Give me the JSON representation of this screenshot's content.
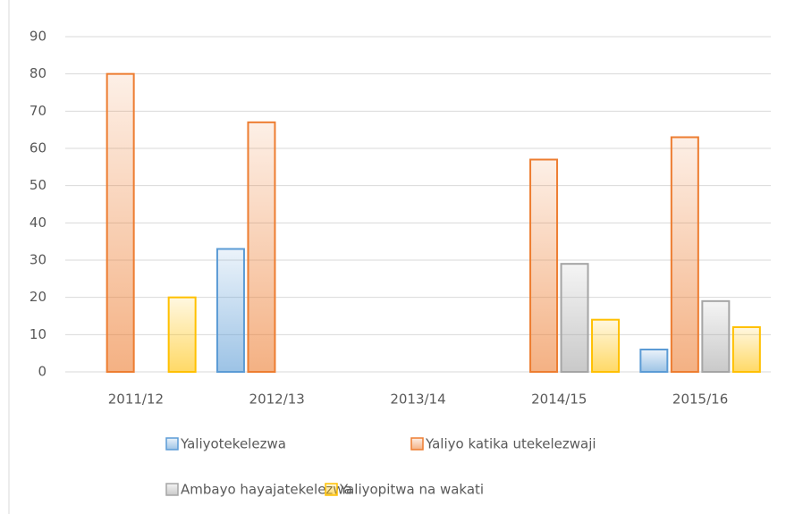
{
  "chart_data": {
    "type": "bar",
    "categories": [
      "2011/12",
      "2012/13",
      "2013/14",
      "2014/15",
      "2015/16"
    ],
    "series": [
      {
        "name": "Yaliyotekelezwa",
        "color": "#5b9bd5",
        "values": [
          null,
          33,
          null,
          null,
          6
        ]
      },
      {
        "name": "Yaliyo katika utekelezwaji",
        "color": "#ed7d31",
        "values": [
          80,
          67,
          null,
          57,
          63
        ]
      },
      {
        "name": "Ambayo hayajatekelezwa",
        "color": "#a5a5a5",
        "values": [
          null,
          null,
          null,
          29,
          19
        ]
      },
      {
        "name": "Yaliyopitwa na wakati",
        "color": "#ffc000",
        "values": [
          20,
          null,
          null,
          14,
          12
        ]
      }
    ],
    "ylim": [
      0,
      90
    ],
    "yticks": [
      0,
      10,
      20,
      30,
      40,
      50,
      60,
      70,
      80,
      90
    ],
    "grid": true,
    "legend": "bottom"
  }
}
